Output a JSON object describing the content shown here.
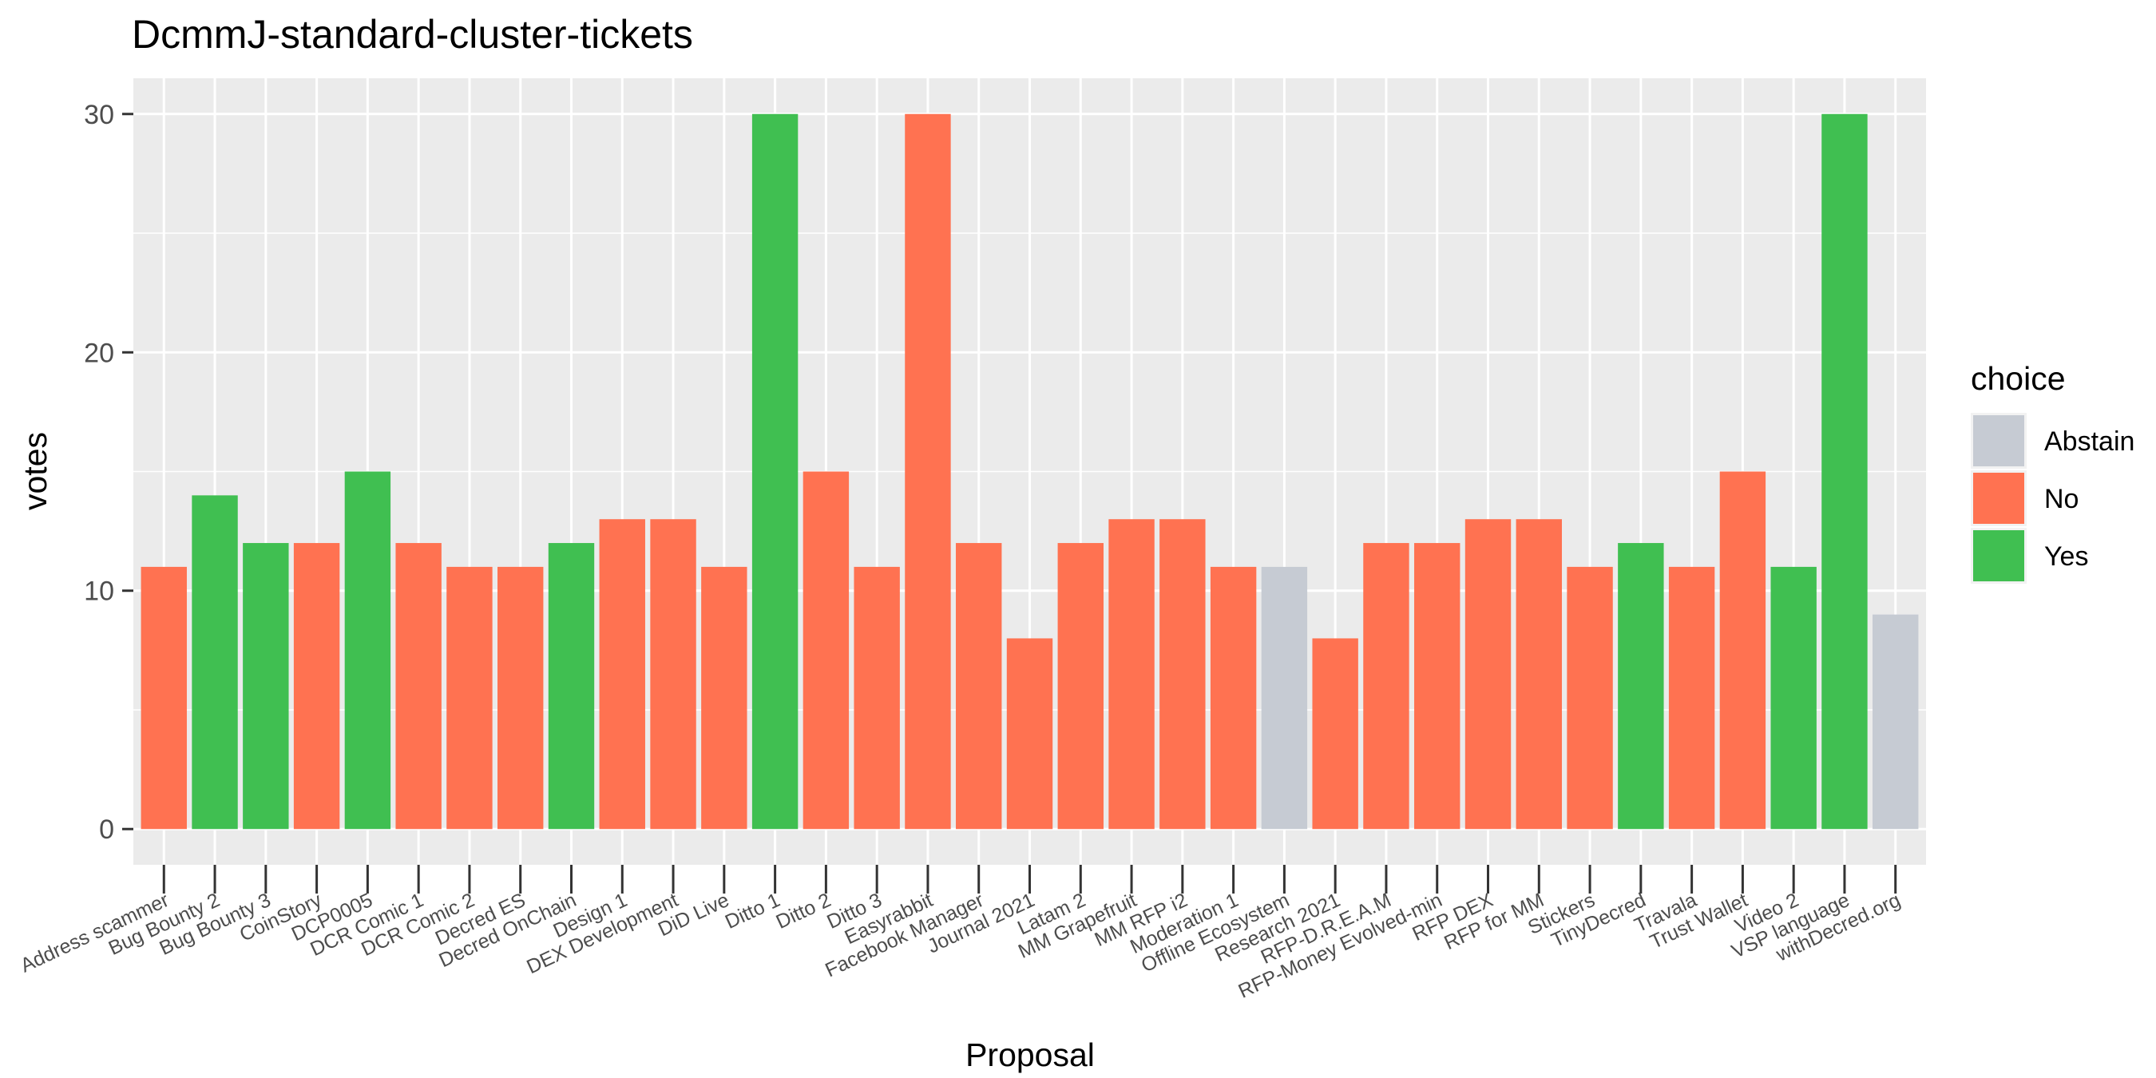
{
  "chart_data": {
    "type": "bar",
    "title": "DcmmJ-standard-cluster-tickets",
    "xlabel": "Proposal",
    "ylabel": "votes",
    "ylim": [
      -1.5,
      31.5
    ],
    "yticks": [
      0,
      10,
      20,
      30
    ],
    "grid": true,
    "legend_placement": "right",
    "legend": {
      "title": "choice",
      "entries": [
        {
          "label": "Abstain",
          "color": "#c6cbd3"
        },
        {
          "label": "No",
          "color": "#ff7251"
        },
        {
          "label": "Yes",
          "color": "#40bf51"
        }
      ]
    },
    "categories": [
      "Address scammer",
      "Bug Bounty 2",
      "Bug Bounty 3",
      "CoinStory",
      "DCP0005",
      "DCR Comic 1",
      "DCR Comic 2",
      "Decred ES",
      "Decred OnChain",
      "Design 1",
      "DEX Development",
      "DiD Live",
      "Ditto 1",
      "Ditto 2",
      "Ditto 3",
      "Easyrabbit",
      "Facebook Manager",
      "Journal 2021",
      "Latam 2",
      "MM Grapefruit",
      "MM RFP i2",
      "Moderation 1",
      "Offline Ecosystem",
      "Research 2021",
      "RFP-D.R.E.A.M",
      "RFP-Money Evolved-min",
      "RFP DEX",
      "RFP for MM",
      "Stickers",
      "TinyDecred",
      "Travala",
      "Trust Wallet",
      "Video 2",
      "VSP language",
      "withDecred.org"
    ],
    "values": [
      11,
      14,
      12,
      12,
      15,
      12,
      11,
      11,
      12,
      13,
      13,
      11,
      30,
      15,
      11,
      30,
      12,
      8,
      12,
      13,
      13,
      11,
      11,
      8,
      12,
      12,
      13,
      13,
      11,
      12,
      11,
      15,
      11,
      30,
      9
    ],
    "choices": [
      "No",
      "Yes",
      "Yes",
      "No",
      "Yes",
      "No",
      "No",
      "No",
      "Yes",
      "No",
      "No",
      "No",
      "Yes",
      "No",
      "No",
      "No",
      "No",
      "No",
      "No",
      "No",
      "No",
      "No",
      "Abstain",
      "No",
      "No",
      "No",
      "No",
      "No",
      "No",
      "Yes",
      "No",
      "No",
      "Yes",
      "Yes",
      "Abstain"
    ]
  }
}
